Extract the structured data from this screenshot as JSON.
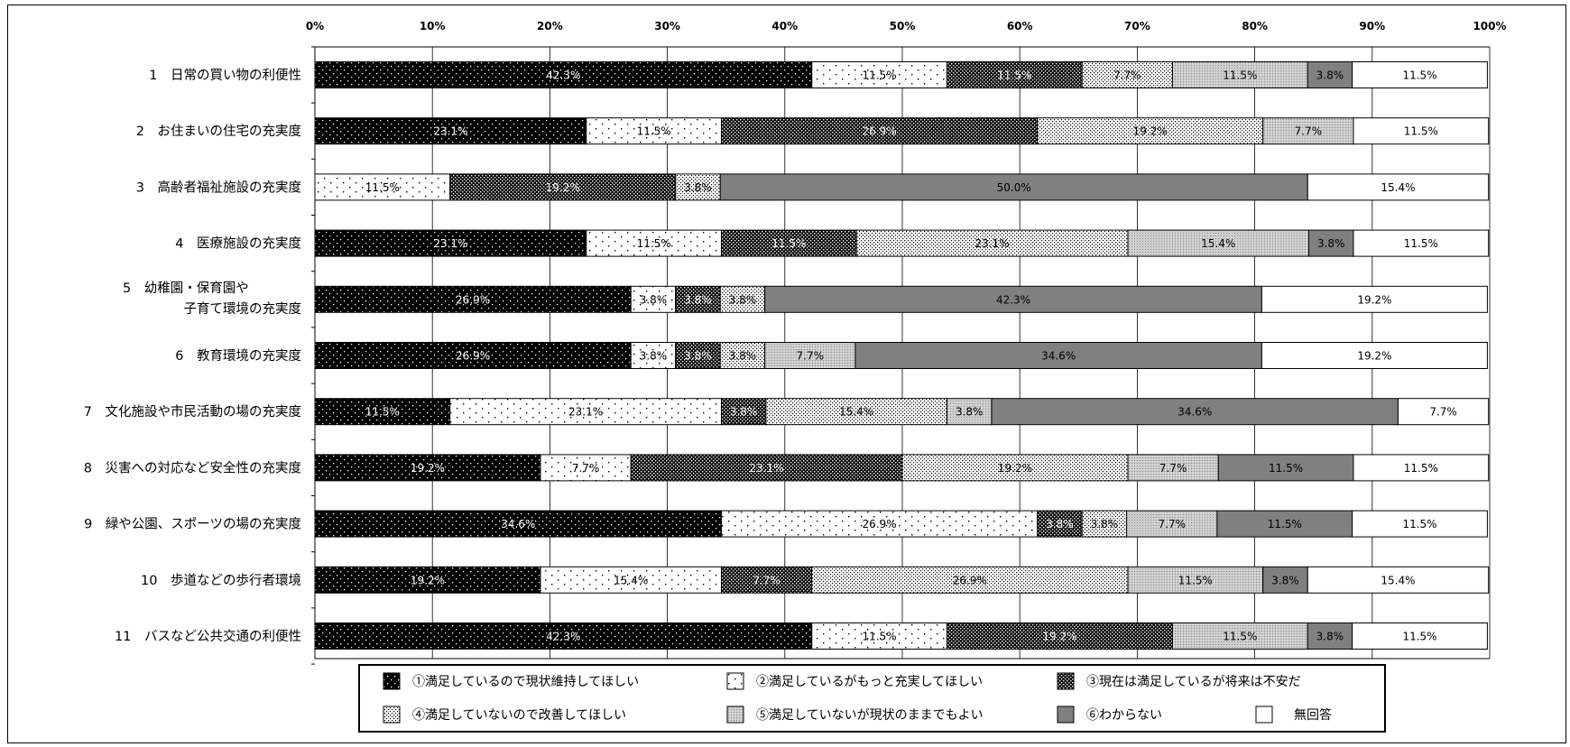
{
  "chart_data": {
    "type": "bar",
    "orientation": "horizontal",
    "stacked": true,
    "x_ticks": [
      "0%",
      "10%",
      "20%",
      "30%",
      "40%",
      "50%",
      "60%",
      "70%",
      "80%",
      "90%",
      "100%"
    ],
    "xlim": [
      0,
      100
    ],
    "grid": "vertical",
    "legend_position": "bottom",
    "categories": [
      [
        "1　日常の買い物の利便性"
      ],
      [
        "2　お住まいの住宅の充実度"
      ],
      [
        "3　高齢者福祉施設の充実度"
      ],
      [
        "4　医療施設の充実度"
      ],
      [
        "5　幼稚園・保育園や",
        "子育て環境の充実度"
      ],
      [
        "6　教育環境の充実度"
      ],
      [
        "7　文化施設や市民活動の場の充実度"
      ],
      [
        "8　災害への対応など安全性の充実度"
      ],
      [
        "9　緑や公園、スポーツの場の充実度"
      ],
      [
        "10　歩道などの歩行者環境"
      ],
      [
        "11　バスなど公共交通の利便性"
      ]
    ],
    "series": [
      {
        "name": "①満足しているので現状維持してほしい",
        "pattern": "dense-dark-dots",
        "values": [
          42.3,
          23.1,
          0,
          23.1,
          26.9,
          26.9,
          11.5,
          19.2,
          34.6,
          19.2,
          42.3
        ]
      },
      {
        "name": "②満足しているがもっと充実してほしい",
        "pattern": "sparse-light-dots",
        "values": [
          11.5,
          11.5,
          11.5,
          11.5,
          3.8,
          3.8,
          23.1,
          7.7,
          26.9,
          15.4,
          11.5
        ]
      },
      {
        "name": "③現在は満足しているが将来は不安だ",
        "pattern": "dark-checker",
        "values": [
          11.5,
          26.9,
          19.2,
          11.5,
          3.8,
          3.8,
          3.8,
          23.1,
          3.8,
          7.7,
          19.2
        ]
      },
      {
        "name": "④満足していないので改善してほしい",
        "pattern": "light-dots",
        "values": [
          7.7,
          19.2,
          3.8,
          23.1,
          3.8,
          3.8,
          15.4,
          19.2,
          3.8,
          26.9,
          0
        ]
      },
      {
        "name": "⑤満足していないが現状のままでもよい",
        "pattern": "grey-fine",
        "values": [
          11.5,
          7.7,
          0,
          15.4,
          0,
          7.7,
          3.8,
          7.7,
          7.7,
          11.5,
          11.5
        ]
      },
      {
        "name": "⑥わからない",
        "pattern": "solid-grey",
        "values": [
          3.8,
          0,
          50.0,
          3.8,
          42.3,
          34.6,
          34.6,
          11.5,
          11.5,
          3.8,
          3.8
        ]
      },
      {
        "name": "無回答",
        "pattern": "white",
        "values": [
          11.5,
          11.5,
          15.4,
          11.5,
          19.2,
          19.2,
          7.7,
          11.5,
          11.5,
          15.4,
          11.5
        ]
      }
    ],
    "segment_labels": [
      [
        "42.3%",
        "11.5%",
        "11.5%",
        "7.7%",
        "11.5%",
        "3.8%",
        "11.5%"
      ],
      [
        "23.1%",
        "11.5%",
        "26.9%",
        "19.2%",
        "7.7%",
        "",
        "11.5%"
      ],
      [
        "",
        "11.5%",
        "19.2%",
        "3.8%",
        "",
        "50.0%",
        "15.4%"
      ],
      [
        "23.1%",
        "11.5%",
        "11.5%",
        "23.1%",
        "15.4%",
        "3.8%",
        "11.5%"
      ],
      [
        "26.9%",
        "3.8%",
        "3.8%",
        "3.8%",
        "",
        "42.3%",
        "19.2%"
      ],
      [
        "26.9%",
        "3.8%",
        "3.8%",
        "3.8%",
        "7.7%",
        "34.6%",
        "19.2%"
      ],
      [
        "11.5%",
        "23.1%",
        "3.8%",
        "15.4%",
        "3.8%",
        "34.6%",
        "7.7%"
      ],
      [
        "19.2%",
        "7.7%",
        "23.1%",
        "19.2%",
        "7.7%",
        "11.5%",
        "11.5%"
      ],
      [
        "34.6%",
        "26.9%",
        "3.8%",
        "3.8%",
        "7.7%",
        "11.5%",
        "11.5%"
      ],
      [
        "19.2%",
        "15.4%",
        "7.7%",
        "26.9%",
        "11.5%",
        "3.8%",
        "15.4%"
      ],
      [
        "42.3%",
        "11.5%",
        "19.2%",
        "",
        "11.5%",
        "3.8%",
        "11.5%"
      ]
    ],
    "label_colors": [
      "#ffffff",
      "#000000",
      "#ffffff",
      "#000000",
      "#000000",
      "#000000",
      "#000000"
    ],
    "colors": {
      "dark": "#000000",
      "grey": "#808080",
      "light_grey": "#c8c8c8",
      "white": "#ffffff"
    }
  }
}
